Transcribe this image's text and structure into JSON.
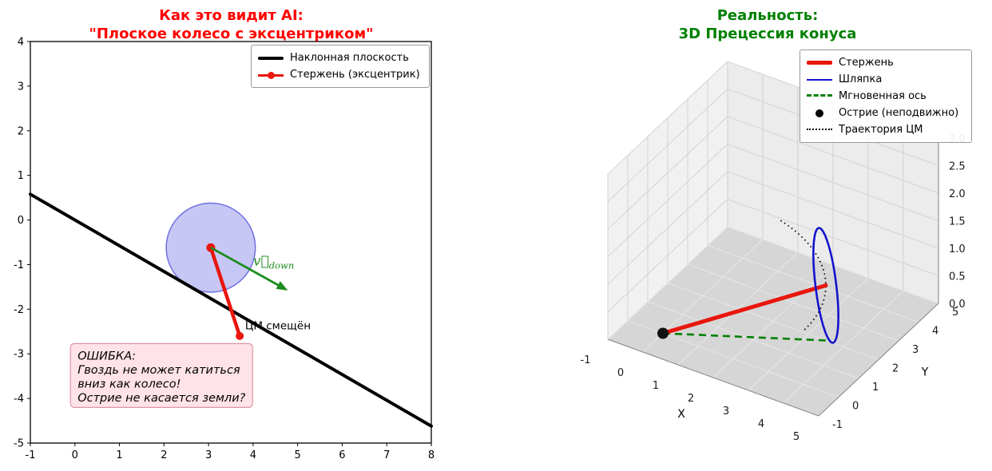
{
  "figure": {
    "background": "#ffffff"
  },
  "chart_data": [
    {
      "type": "line",
      "title_lines": [
        "Как это видит AI:",
        "\"Плоское колесо с эксцентриком\""
      ],
      "title_color": "#ff0000",
      "xlim": [
        -1,
        8
      ],
      "ylim": [
        -5,
        4
      ],
      "xticks": [
        -1,
        0,
        1,
        2,
        3,
        4,
        5,
        6,
        7,
        8
      ],
      "yticks": [
        -5,
        -4,
        -3,
        -2,
        -1,
        0,
        1,
        2,
        3,
        4
      ],
      "grid": false,
      "series": [
        {
          "name": "Наклонная плоскость",
          "color": "#000000",
          "width": 4,
          "points": [
            [
              -1,
              0.577
            ],
            [
              8,
              -4.619
            ]
          ]
        },
        {
          "name": "Стержень (эксцентрик)",
          "color": "#e8160c",
          "width": 4.5,
          "marker": "circle",
          "points": [
            [
              3.05,
              -0.62
            ],
            [
              3.7,
              -2.6
            ]
          ]
        }
      ],
      "wheel": {
        "cx": 3.05,
        "cy": -0.62,
        "r": 1.0,
        "fill": "#9090ee",
        "fill_opacity": 0.5,
        "edge": "#5c5cdd"
      },
      "velocity_arrow": {
        "from": [
          3.05,
          -0.62
        ],
        "to": [
          4.78,
          -1.58
        ],
        "color": "#1e8c1e",
        "label": "v⃗",
        "label_sub": "down",
        "label_pos": [
          4.0,
          -1.02
        ]
      },
      "annotations": [
        {
          "text": "ЦМ смещён",
          "pos": [
            3.82,
            -2.45
          ]
        }
      ],
      "note_box": {
        "lines": [
          "ОШИБКА:",
          "Гвоздь не может катиться",
          "вниз как колесо!",
          "Острие не касается земли?"
        ],
        "pos": [
          -0.1,
          -2.77
        ],
        "bg": "#ffe3e8",
        "border": "#dc96a6"
      },
      "legend": [
        {
          "label": "Наклонная плоскость",
          "swatch": "black-line"
        },
        {
          "label": "Стержень (эксцентрик)",
          "swatch": "red-line-dot"
        }
      ]
    },
    {
      "type": "3d-line",
      "title_lines": [
        "Реальность:",
        "3D Прецессия конуса"
      ],
      "title_color": "#008000",
      "xlabel": "X",
      "ylabel": "Y",
      "xlim": [
        -1,
        5
      ],
      "ylim": [
        -1,
        5
      ],
      "zlim": [
        0,
        3
      ],
      "xticks": [
        -1,
        0,
        1,
        2,
        3,
        4,
        5
      ],
      "yticks": [
        -1,
        0,
        1,
        2,
        3,
        4,
        5
      ],
      "zticks": [
        0,
        0.5,
        1,
        1.5,
        2,
        2.5,
        3
      ],
      "pivot_point": [
        0,
        0,
        0
      ],
      "rod": {
        "from": [
          0,
          0,
          0
        ],
        "to": [
          3.5,
          2,
          1
        ],
        "color": "#e8160c",
        "width": 5
      },
      "cap": {
        "center": [
          3.5,
          2,
          1
        ],
        "radius": 1.05,
        "color": "#1414cc"
      },
      "instant_axis": {
        "from": [
          0,
          0,
          0
        ],
        "to": [
          3.5,
          2,
          0
        ],
        "color": "#008000"
      },
      "cm_trajectory": {
        "center": [
          0,
          0,
          1
        ],
        "radius": 4.03,
        "theta_deg": [
          0,
          74
        ],
        "color": "#000000"
      },
      "legend": [
        {
          "label": "Стержень",
          "swatch": "red-thick-line"
        },
        {
          "label": "Шляпка",
          "swatch": "blue-line"
        },
        {
          "label": "Мгновенная ось",
          "swatch": "green-dashed"
        },
        {
          "label": "Острие (неподвижно)",
          "swatch": "black-dot"
        },
        {
          "label": "Траектория ЦМ",
          "swatch": "black-dotted"
        }
      ]
    }
  ]
}
